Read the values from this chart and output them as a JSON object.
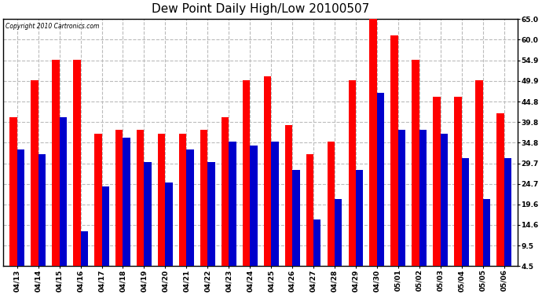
{
  "title": "Dew Point Daily High/Low 20100507",
  "copyright": "Copyright 2010 Cartronics.com",
  "categories": [
    "04/13",
    "04/14",
    "04/15",
    "04/16",
    "04/17",
    "04/18",
    "04/19",
    "04/20",
    "04/21",
    "04/22",
    "04/23",
    "04/24",
    "04/25",
    "04/26",
    "04/27",
    "04/28",
    "04/29",
    "04/30",
    "05/01",
    "05/02",
    "05/03",
    "05/04",
    "05/05",
    "05/06"
  ],
  "high_values": [
    41,
    50,
    55,
    55,
    37,
    38,
    38,
    37,
    37,
    38,
    41,
    50,
    51,
    39,
    32,
    35,
    50,
    65,
    61,
    55,
    46,
    46,
    50,
    42
  ],
  "low_values": [
    33,
    32,
    41,
    13,
    24,
    36,
    30,
    25,
    33,
    30,
    35,
    34,
    35,
    28,
    16,
    21,
    28,
    47,
    38,
    38,
    37,
    31,
    21,
    31
  ],
  "high_color": "#ff0000",
  "low_color": "#0000cc",
  "bg_color": "#ffffff",
  "plot_bg_color": "#ffffff",
  "grid_color": "#bbbbbb",
  "yticks": [
    4.5,
    9.5,
    14.6,
    19.6,
    24.7,
    29.7,
    34.8,
    39.8,
    44.8,
    49.9,
    54.9,
    60.0,
    65.0
  ],
  "ymin": 4.5,
  "ymax": 65.0,
  "title_fontsize": 11,
  "tick_fontsize": 6.5,
  "bar_width": 0.35,
  "fig_width": 6.9,
  "fig_height": 3.75
}
